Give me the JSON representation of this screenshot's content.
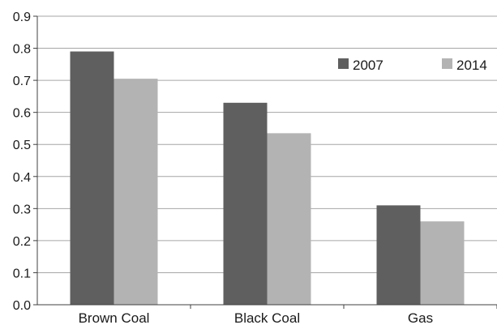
{
  "chart_data": {
    "type": "bar",
    "categories": [
      "Brown Coal",
      "Black Coal",
      "Gas"
    ],
    "series": [
      {
        "name": "2007",
        "values": [
          0.79,
          0.63,
          0.31
        ]
      },
      {
        "name": "2014",
        "values": [
          0.705,
          0.535,
          0.26
        ]
      }
    ],
    "ylim": [
      0,
      0.9
    ],
    "yticks": [
      "0.0",
      "0.1",
      "0.2",
      "0.3",
      "0.4",
      "0.5",
      "0.6",
      "0.7",
      "0.8",
      "0.9"
    ],
    "grid": true,
    "legend_position": "top-right",
    "colors": {
      "2007": "#5f5f5f",
      "2014": "#b3b3b3",
      "grid": "#a6a6a6",
      "axis": "#404040"
    }
  }
}
